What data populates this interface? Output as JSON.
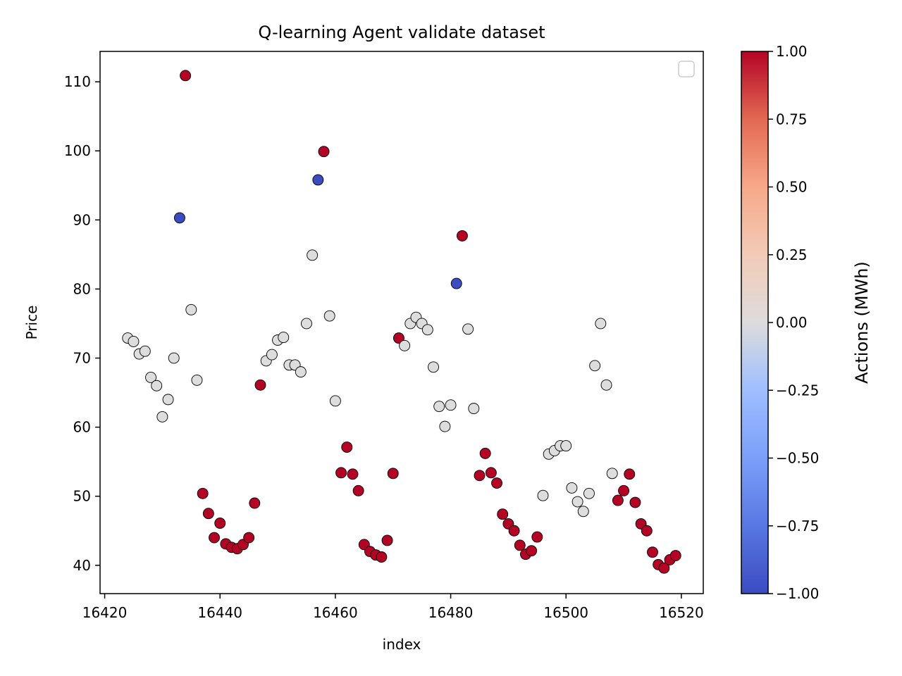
{
  "chart_data": {
    "type": "scatter",
    "title": "Q-learning Agent validate dataset",
    "xlabel": "index",
    "ylabel": "Price",
    "xlim": [
      16419.2,
      16523.8
    ],
    "ylim": [
      35.9,
      114.4
    ],
    "xticks": [
      16420,
      16440,
      16460,
      16480,
      16500,
      16520
    ],
    "yticks": [
      40,
      50,
      60,
      70,
      80,
      90,
      100,
      110
    ],
    "legend": {
      "placement": "top-right",
      "entries": []
    },
    "colorbar": {
      "label": "Actions (MWh)",
      "colormap": "coolwarm",
      "range": [
        -1.0,
        1.0
      ],
      "ticks": [
        "1.00",
        "0.75",
        "0.50",
        "0.25",
        "0.00",
        "−0.25",
        "−0.50",
        "−0.75",
        "−1.00"
      ],
      "tick_values": [
        1.0,
        0.75,
        0.5,
        0.25,
        0.0,
        -0.25,
        -0.5,
        -0.75,
        -1.0
      ]
    },
    "points": [
      {
        "x": 16424,
        "y": 72.9,
        "action": 0
      },
      {
        "x": 16425,
        "y": 72.4,
        "action": 0
      },
      {
        "x": 16426,
        "y": 70.6,
        "action": 0
      },
      {
        "x": 16427,
        "y": 71.0,
        "action": 0
      },
      {
        "x": 16428,
        "y": 67.2,
        "action": 0
      },
      {
        "x": 16429,
        "y": 66.0,
        "action": 0
      },
      {
        "x": 16430,
        "y": 61.5,
        "action": 0
      },
      {
        "x": 16431,
        "y": 64.0,
        "action": 0
      },
      {
        "x": 16432,
        "y": 70.0,
        "action": 0
      },
      {
        "x": 16433,
        "y": 90.3,
        "action": -1
      },
      {
        "x": 16434,
        "y": 110.9,
        "action": 1
      },
      {
        "x": 16435,
        "y": 77.0,
        "action": 0
      },
      {
        "x": 16436,
        "y": 66.8,
        "action": 0
      },
      {
        "x": 16437,
        "y": 50.4,
        "action": 1
      },
      {
        "x": 16438,
        "y": 47.5,
        "action": 1
      },
      {
        "x": 16439,
        "y": 44.0,
        "action": 1
      },
      {
        "x": 16440,
        "y": 46.1,
        "action": 1
      },
      {
        "x": 16441,
        "y": 43.1,
        "action": 1
      },
      {
        "x": 16442,
        "y": 42.6,
        "action": 1
      },
      {
        "x": 16443,
        "y": 42.4,
        "action": 1
      },
      {
        "x": 16444,
        "y": 43.0,
        "action": 1
      },
      {
        "x": 16445,
        "y": 44.0,
        "action": 1
      },
      {
        "x": 16446,
        "y": 49.0,
        "action": 1
      },
      {
        "x": 16447,
        "y": 66.1,
        "action": 1
      },
      {
        "x": 16448,
        "y": 69.6,
        "action": 0
      },
      {
        "x": 16449,
        "y": 70.5,
        "action": 0
      },
      {
        "x": 16450,
        "y": 72.6,
        "action": 0
      },
      {
        "x": 16451,
        "y": 73.0,
        "action": 0
      },
      {
        "x": 16452,
        "y": 69.0,
        "action": 0
      },
      {
        "x": 16453,
        "y": 69.0,
        "action": 0
      },
      {
        "x": 16454,
        "y": 68.0,
        "action": 0
      },
      {
        "x": 16455,
        "y": 75.0,
        "action": 0
      },
      {
        "x": 16456,
        "y": 84.9,
        "action": 0
      },
      {
        "x": 16457,
        "y": 95.8,
        "action": -1
      },
      {
        "x": 16458,
        "y": 99.9,
        "action": 1
      },
      {
        "x": 16459,
        "y": 76.1,
        "action": 0
      },
      {
        "x": 16460,
        "y": 63.8,
        "action": 0
      },
      {
        "x": 16461,
        "y": 53.4,
        "action": 1
      },
      {
        "x": 16462,
        "y": 57.1,
        "action": 1
      },
      {
        "x": 16463,
        "y": 53.2,
        "action": 1
      },
      {
        "x": 16464,
        "y": 50.8,
        "action": 1
      },
      {
        "x": 16465,
        "y": 43.0,
        "action": 1
      },
      {
        "x": 16466,
        "y": 42.0,
        "action": 1
      },
      {
        "x": 16467,
        "y": 41.5,
        "action": 1
      },
      {
        "x": 16468,
        "y": 41.2,
        "action": 1
      },
      {
        "x": 16469,
        "y": 43.6,
        "action": 1
      },
      {
        "x": 16470,
        "y": 53.3,
        "action": 1
      },
      {
        "x": 16471,
        "y": 72.9,
        "action": 1
      },
      {
        "x": 16472,
        "y": 71.8,
        "action": 0
      },
      {
        "x": 16473,
        "y": 75.0,
        "action": 0
      },
      {
        "x": 16474,
        "y": 75.9,
        "action": 0
      },
      {
        "x": 16475,
        "y": 75.0,
        "action": 0
      },
      {
        "x": 16476,
        "y": 74.1,
        "action": 0
      },
      {
        "x": 16477,
        "y": 68.7,
        "action": 0
      },
      {
        "x": 16478,
        "y": 63.0,
        "action": 0
      },
      {
        "x": 16479,
        "y": 60.1,
        "action": 0
      },
      {
        "x": 16480,
        "y": 63.2,
        "action": 0
      },
      {
        "x": 16481,
        "y": 80.8,
        "action": -1
      },
      {
        "x": 16482,
        "y": 87.7,
        "action": 1
      },
      {
        "x": 16483,
        "y": 74.2,
        "action": 0
      },
      {
        "x": 16484,
        "y": 62.7,
        "action": 0
      },
      {
        "x": 16485,
        "y": 53.0,
        "action": 1
      },
      {
        "x": 16486,
        "y": 56.2,
        "action": 1
      },
      {
        "x": 16487,
        "y": 53.4,
        "action": 1
      },
      {
        "x": 16488,
        "y": 51.9,
        "action": 1
      },
      {
        "x": 16489,
        "y": 47.4,
        "action": 1
      },
      {
        "x": 16490,
        "y": 46.0,
        "action": 1
      },
      {
        "x": 16491,
        "y": 45.0,
        "action": 1
      },
      {
        "x": 16492,
        "y": 42.9,
        "action": 1
      },
      {
        "x": 16493,
        "y": 41.6,
        "action": 1
      },
      {
        "x": 16494,
        "y": 42.1,
        "action": 1
      },
      {
        "x": 16495,
        "y": 44.1,
        "action": 1
      },
      {
        "x": 16496,
        "y": 50.1,
        "action": 0
      },
      {
        "x": 16497,
        "y": 56.1,
        "action": 0
      },
      {
        "x": 16498,
        "y": 56.6,
        "action": 0
      },
      {
        "x": 16499,
        "y": 57.3,
        "action": 0
      },
      {
        "x": 16500,
        "y": 57.3,
        "action": 0
      },
      {
        "x": 16501,
        "y": 51.2,
        "action": 0
      },
      {
        "x": 16502,
        "y": 49.2,
        "action": 0
      },
      {
        "x": 16503,
        "y": 47.8,
        "action": 0
      },
      {
        "x": 16504,
        "y": 50.4,
        "action": 0
      },
      {
        "x": 16505,
        "y": 68.9,
        "action": 0
      },
      {
        "x": 16506,
        "y": 75.0,
        "action": 0
      },
      {
        "x": 16507,
        "y": 66.1,
        "action": 0
      },
      {
        "x": 16508,
        "y": 53.3,
        "action": 0
      },
      {
        "x": 16509,
        "y": 49.4,
        "action": 1
      },
      {
        "x": 16510,
        "y": 50.8,
        "action": 1
      },
      {
        "x": 16511,
        "y": 53.2,
        "action": 1
      },
      {
        "x": 16512,
        "y": 49.1,
        "action": 1
      },
      {
        "x": 16513,
        "y": 46.0,
        "action": 1
      },
      {
        "x": 16514,
        "y": 45.0,
        "action": 1
      },
      {
        "x": 16515,
        "y": 41.9,
        "action": 1
      },
      {
        "x": 16516,
        "y": 40.1,
        "action": 1
      },
      {
        "x": 16517,
        "y": 39.6,
        "action": 1
      },
      {
        "x": 16518,
        "y": 40.8,
        "action": 1
      },
      {
        "x": 16519,
        "y": 41.4,
        "action": 1
      }
    ],
    "colors": {
      "positive": "#b40426",
      "neutral": "#dddddd",
      "negative": "#3b4cc0"
    }
  }
}
